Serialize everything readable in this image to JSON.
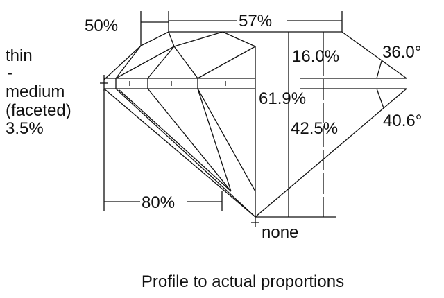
{
  "labels": {
    "table_from_star": "50%",
    "table": "57%",
    "girdle_line1": "thin",
    "girdle_line2": "-",
    "girdle_line3": "medium",
    "girdle_line4": "(faceted)",
    "girdle_line5": "3.5%",
    "crown_height": "16.0%",
    "crown_angle": "36.0°",
    "total_depth": "61.9%",
    "pavilion_depth": "42.5%",
    "pavilion_angle": "40.6°",
    "lower_half": "80%",
    "culet": "none"
  },
  "caption": "Profile to actual proportions"
}
